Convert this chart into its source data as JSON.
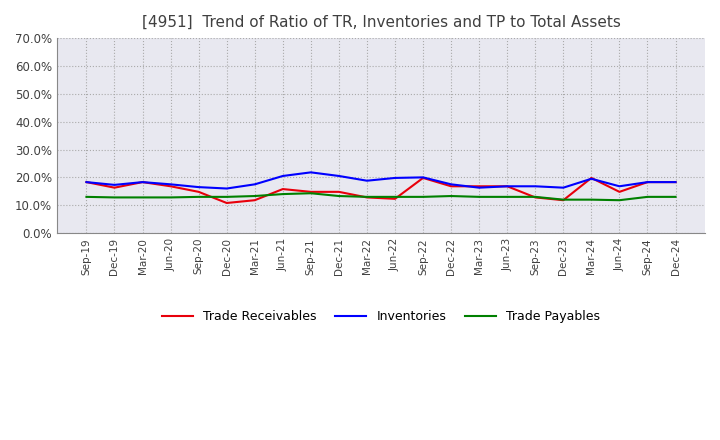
{
  "title": "[4951]  Trend of Ratio of TR, Inventories and TP to Total Assets",
  "title_fontsize": 11,
  "ylim": [
    0.0,
    0.7
  ],
  "yticks": [
    0.0,
    0.1,
    0.2,
    0.3,
    0.4,
    0.5,
    0.6,
    0.7
  ],
  "ytick_labels": [
    "0.0%",
    "10.0%",
    "20.0%",
    "30.0%",
    "40.0%",
    "50.0%",
    "60.0%",
    "70.0%"
  ],
  "x_labels": [
    "Sep-19",
    "Dec-19",
    "Mar-20",
    "Jun-20",
    "Sep-20",
    "Dec-20",
    "Mar-21",
    "Jun-21",
    "Sep-21",
    "Dec-21",
    "Mar-22",
    "Jun-22",
    "Sep-22",
    "Dec-22",
    "Mar-23",
    "Jun-23",
    "Sep-23",
    "Dec-23",
    "Mar-24",
    "Jun-24",
    "Sep-24",
    "Dec-24"
  ],
  "trade_receivables": [
    0.183,
    0.163,
    0.183,
    0.168,
    0.148,
    0.108,
    0.118,
    0.158,
    0.148,
    0.148,
    0.128,
    0.123,
    0.198,
    0.168,
    0.168,
    0.168,
    0.128,
    0.118,
    0.198,
    0.148,
    0.183,
    0.183
  ],
  "inventories": [
    0.183,
    0.173,
    0.183,
    0.175,
    0.165,
    0.16,
    0.175,
    0.205,
    0.218,
    0.205,
    0.188,
    0.198,
    0.2,
    0.175,
    0.163,
    0.168,
    0.168,
    0.163,
    0.195,
    0.168,
    0.183,
    0.183
  ],
  "trade_payables": [
    0.13,
    0.128,
    0.128,
    0.128,
    0.13,
    0.13,
    0.133,
    0.14,
    0.143,
    0.133,
    0.13,
    0.13,
    0.13,
    0.133,
    0.13,
    0.13,
    0.13,
    0.12,
    0.12,
    0.118,
    0.13,
    0.13
  ],
  "tr_color": "#e8000b",
  "inv_color": "#0000ff",
  "tp_color": "#008000",
  "line_width": 1.5,
  "bg_color": "#ffffff",
  "plot_bg_color": "#e8e8f0",
  "grid_color": "#aaaaaa",
  "legend_labels": [
    "Trade Receivables",
    "Inventories",
    "Trade Payables"
  ]
}
